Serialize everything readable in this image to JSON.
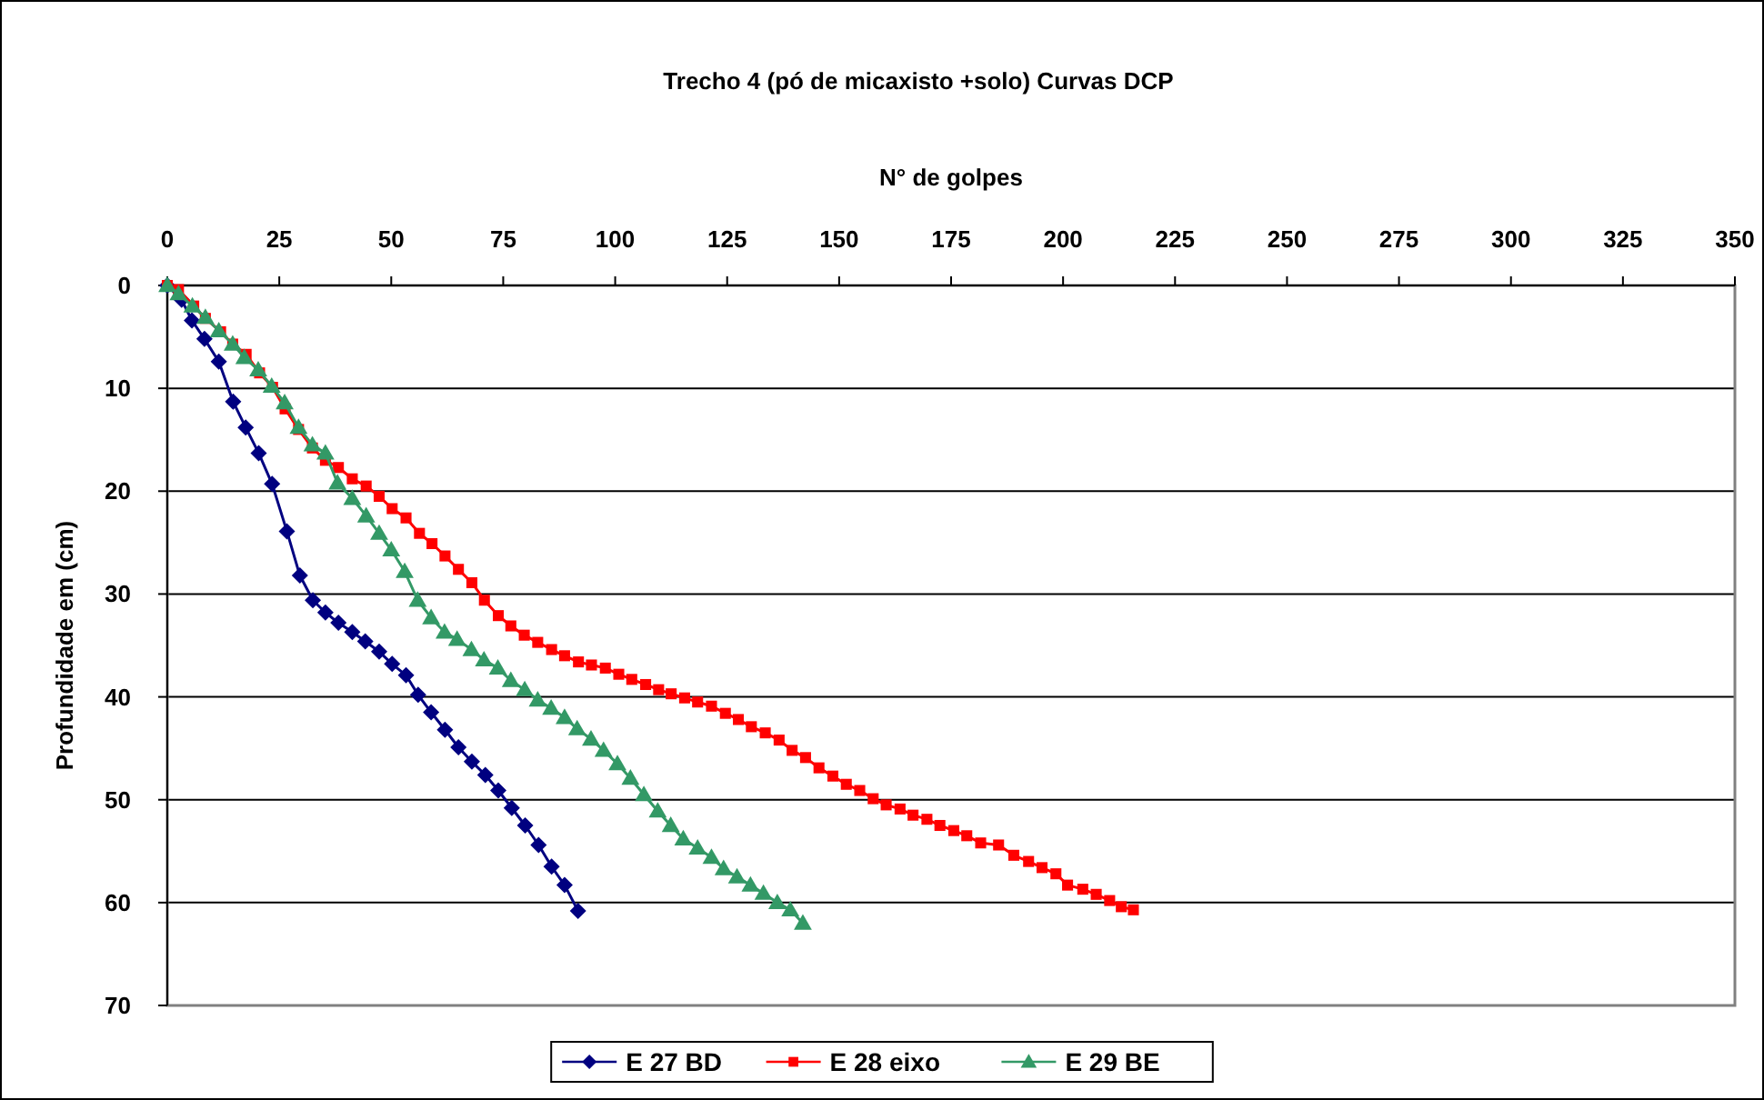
{
  "chart_data": {
    "type": "line",
    "title": "Trecho 4 (pó de micaxisto +solo) Curvas DCP",
    "xlabel": "N° de golpes",
    "ylabel": "Profundidade em (cm)",
    "xlim": [
      0,
      350
    ],
    "xticks": [
      0,
      25,
      50,
      75,
      100,
      125,
      150,
      175,
      200,
      225,
      250,
      275,
      300,
      325,
      350
    ],
    "ylim": [
      70,
      0
    ],
    "yticks": [
      0,
      10,
      20,
      30,
      40,
      50,
      60,
      70
    ],
    "grid": "y",
    "legend": "bottom",
    "line_style": "solid",
    "series": [
      {
        "name": "E 27 BD",
        "color": "#000080",
        "marker": "diamond",
        "x": [
          0,
          3.2,
          5.5,
          8.3,
          11.5,
          14.7,
          17.5,
          20.4,
          23.4,
          26.7,
          29.6,
          32.5,
          35.3,
          38.2,
          41.3,
          44.2,
          47.3,
          50.2,
          53.3,
          56,
          58.9,
          62,
          65,
          68,
          71,
          73.9,
          76.9,
          79.9,
          82.9,
          85.8,
          88.7,
          91.7
        ],
        "values": [
          0,
          1.4,
          3.4,
          5.2,
          7.4,
          11.3,
          13.8,
          16.3,
          19.3,
          23.9,
          28.2,
          30.6,
          31.8,
          32.8,
          33.7,
          34.6,
          35.6,
          36.8,
          37.9,
          39.8,
          41.5,
          43.2,
          44.9,
          46.3,
          47.6,
          49.1,
          50.8,
          52.5,
          54.4,
          56.5,
          58.3,
          60.8
        ]
      },
      {
        "name": "E 28 eixo",
        "color": "#ff0000",
        "marker": "square",
        "x": [
          0,
          2.5,
          5.9,
          8.5,
          11.9,
          14.6,
          17.6,
          20.6,
          23.5,
          26.3,
          29.3,
          32.4,
          35.3,
          38.2,
          41.3,
          44.4,
          47.3,
          50.2,
          53.3,
          56.3,
          59.1,
          62,
          65,
          68,
          70.8,
          73.9,
          76.7,
          79.7,
          82.7,
          85.8,
          88.7,
          91.8,
          94.7,
          97.8,
          100.8,
          103.7,
          106.8,
          109.7,
          112.5,
          115.5,
          118.4,
          121.5,
          124.6,
          127.5,
          130.4,
          133.5,
          136.6,
          139.5,
          142.5,
          145.5,
          148.6,
          151.6,
          154.6,
          157.6,
          160.5,
          163.6,
          166.5,
          169.6,
          172.5,
          175.6,
          178.5,
          181.6,
          185.6,
          189,
          192.3,
          195.3,
          198.4,
          201,
          204.4,
          207.4,
          210.4,
          213,
          215.7
        ],
        "values": [
          0,
          0.4,
          2,
          3.2,
          4.5,
          5.7,
          6.7,
          8.5,
          9.9,
          12,
          14,
          15.8,
          17,
          17.7,
          18.8,
          19.5,
          20.5,
          21.7,
          22.6,
          24.1,
          25.1,
          26.3,
          27.6,
          28.9,
          30.6,
          32.1,
          33.1,
          34,
          34.7,
          35.4,
          36,
          36.6,
          36.9,
          37.2,
          37.8,
          38.3,
          38.8,
          39.3,
          39.7,
          40.1,
          40.5,
          40.9,
          41.6,
          42.2,
          42.9,
          43.5,
          44.2,
          45.2,
          45.9,
          46.9,
          47.7,
          48.5,
          49.1,
          49.9,
          50.5,
          50.9,
          51.5,
          51.9,
          52.5,
          53,
          53.5,
          54.2,
          54.4,
          55.4,
          56,
          56.6,
          57.2,
          58.3,
          58.7,
          59.2,
          59.8,
          60.4,
          60.7
        ]
      },
      {
        "name": "E 29 BE",
        "color": "#339966",
        "marker": "triangle",
        "x": [
          0,
          2.5,
          5.6,
          8.5,
          11.5,
          14.6,
          17.2,
          20.3,
          23.3,
          26.2,
          29.3,
          32.4,
          35.3,
          38,
          41.3,
          44.4,
          47.3,
          50,
          53,
          55.9,
          58.9,
          61.9,
          64.7,
          67.9,
          70.7,
          73.8,
          76.7,
          79.8,
          82.7,
          85.7,
          88.7,
          91.5,
          94.6,
          97.4,
          100.5,
          103.4,
          106.4,
          109.5,
          112.4,
          115.2,
          118.4,
          121.5,
          124.2,
          127.2,
          130.2,
          133.1,
          136.2,
          139.1,
          141.9
        ],
        "values": [
          0,
          0.8,
          2,
          3.1,
          4.4,
          5.7,
          7,
          8.2,
          9.8,
          11.4,
          13.8,
          15.5,
          16.3,
          19.2,
          20.7,
          22.4,
          24.1,
          25.7,
          27.8,
          30.6,
          32.3,
          33.7,
          34.4,
          35.4,
          36.4,
          37.2,
          38.4,
          39.3,
          40.3,
          41.1,
          42,
          43.1,
          44.1,
          45.2,
          46.5,
          47.9,
          49.5,
          51.1,
          52.5,
          53.8,
          54.7,
          55.6,
          56.7,
          57.5,
          58.3,
          59.1,
          60,
          60.7,
          62
        ]
      }
    ]
  }
}
